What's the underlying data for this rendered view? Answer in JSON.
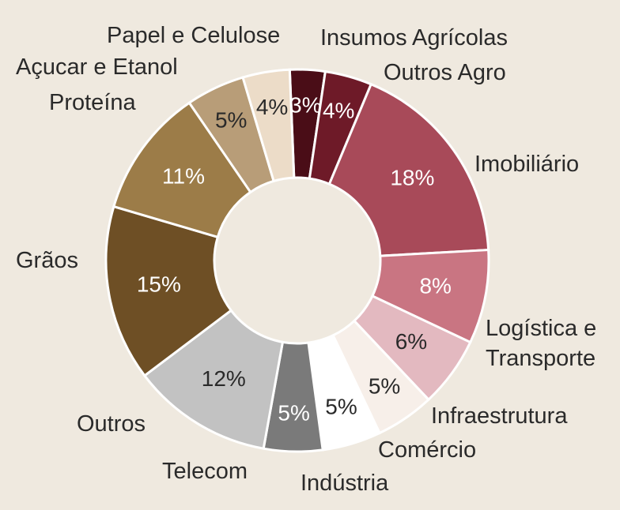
{
  "chart_data": {
    "type": "donut",
    "categories": [
      "Insumos Agrícolas",
      "Outros Agro",
      "Imobiliário",
      "Logística e Transporte",
      "Infraestrutura",
      "Comércio",
      "Indústria",
      "Telecom",
      "Outros",
      "Grãos",
      "Proteína",
      "Açucar e Etanol",
      "Papel e Celulose"
    ],
    "values": [
      3,
      4,
      18,
      8,
      6,
      5,
      5,
      5,
      12,
      15,
      11,
      5,
      4
    ],
    "value_labels": [
      "3%",
      "4%",
      "18%",
      "8%",
      "6%",
      "5%",
      "5%",
      "5%",
      "12%",
      "15%",
      "11%",
      "5%",
      "4%"
    ],
    "colors": [
      "#4a0d17",
      "#6e1a28",
      "#a84a59",
      "#c97582",
      "#e3b9c0",
      "#f7efe9",
      "#ffffff",
      "#7a7a7a",
      "#c2c2c2",
      "#6e4f25",
      "#9c7c48",
      "#b89d78",
      "#ecdcc8"
    ]
  }
}
